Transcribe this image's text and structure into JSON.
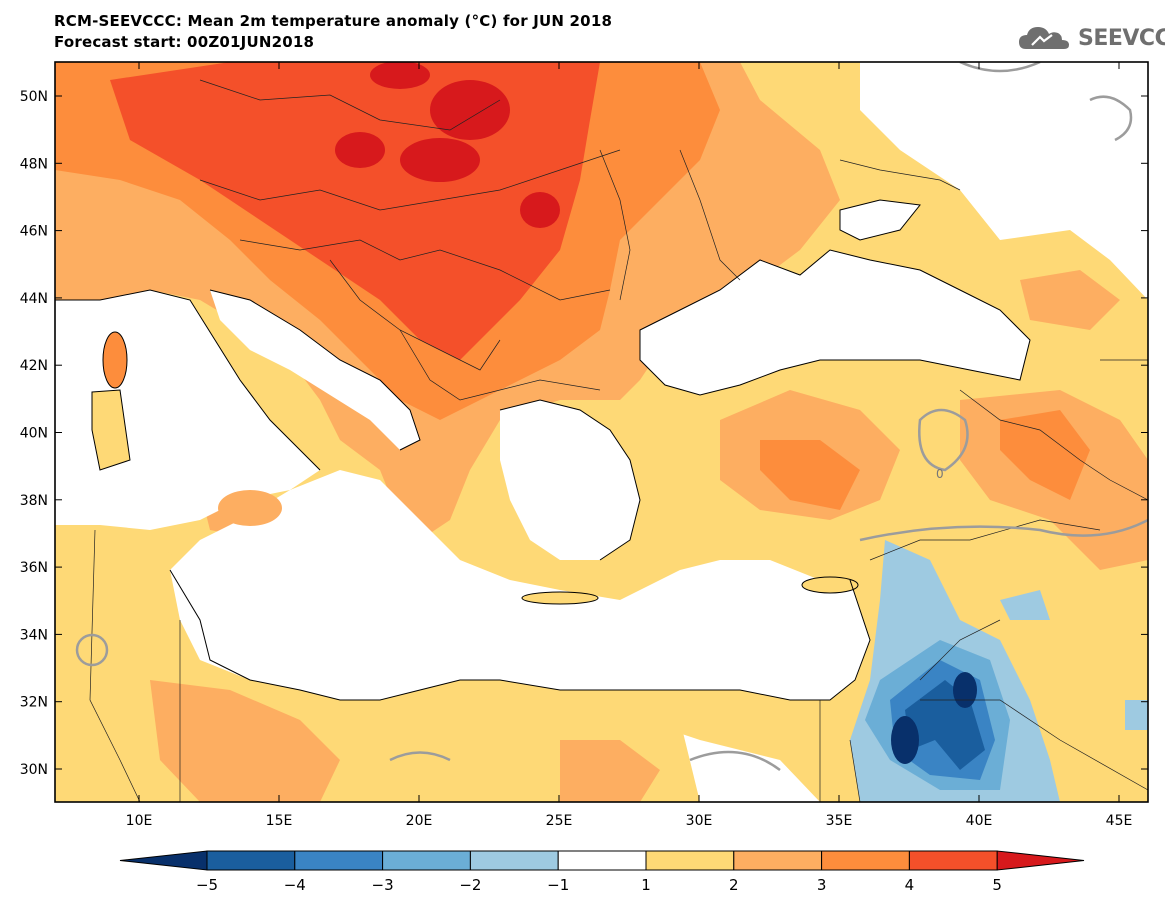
{
  "title_line1": "RCM-SEEVCCC: Mean 2m temperature anomaly (°C) for JUN 2018",
  "title_line2": "Forecast start: 00Z01JUN2018",
  "logo_text": "SEEVCCC",
  "lat_labels": [
    "50N",
    "48N",
    "46N",
    "44N",
    "42N",
    "40N",
    "38N",
    "36N",
    "34N",
    "32N",
    "30N"
  ],
  "lon_labels": [
    "10E",
    "15E",
    "20E",
    "25E",
    "30E",
    "35E",
    "40E",
    "45E"
  ],
  "colorbar": {
    "tick_labels": [
      "−5",
      "−4",
      "−3",
      "−2",
      "−1",
      "1",
      "2",
      "3",
      "4",
      "5"
    ],
    "colors": [
      "#08306b",
      "#1a5e9e",
      "#3a84c4",
      "#6baed6",
      "#9ecae1",
      "#ffffff",
      "#fed976",
      "#fdae61",
      "#fd8d3c",
      "#f4502a",
      "#d7191c"
    ]
  },
  "contour_label": "0",
  "domain": {
    "lon_min": 7,
    "lon_max": 46,
    "lat_min": 29,
    "lat_max": 51
  }
}
